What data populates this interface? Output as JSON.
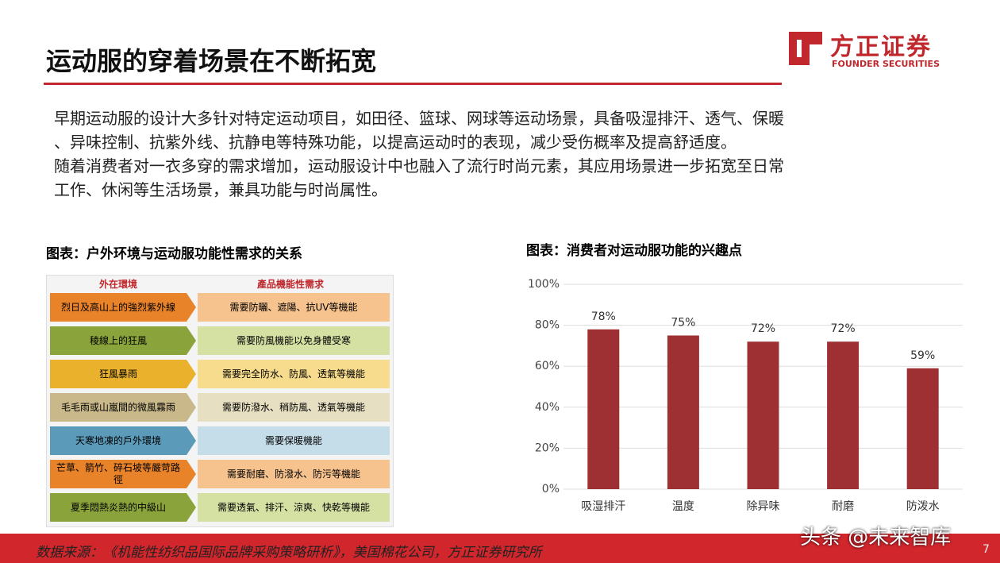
{
  "header": {
    "title": "运动服的穿着场景在不断拓宽",
    "logo_cn": "方正证券",
    "logo_en": "FOUNDER SECURITIES"
  },
  "body": {
    "lines": [
      "早期运动服的设计大多针对特定运动项目，如田径、篮球、网球等运动场景，具备吸湿排汗、透气、保暖",
      "、异味控制、抗紫外线、抗静电等特殊功能，以提高运动时的表现，减少受伤概率及提高舒适度。",
      "随着消费者对一衣多穿的需求增加，运动服设计中也融入了流行时尚元素，其应用场景进一步拓宽至日常",
      "工作、休闲等生活场景，兼具功能与时尚属性。"
    ]
  },
  "left_figure": {
    "title": "图表：户外环境与运动服功能性需求的关系",
    "table": {
      "header": [
        "外在環境",
        "產品機能性需求"
      ],
      "rows": [
        [
          "烈日及高山上的強烈紫外線",
          "需要防曬、遮陽、抗UV等機能"
        ],
        [
          "稜線上的狂風",
          "需要防風機能以免身體受寒"
        ],
        [
          "狂風暴雨",
          "需要完全防水、防風、透氣等機能"
        ],
        [
          "毛毛雨或山嵐間的微風霧雨",
          "需要防潑水、稍防風、透氣等機能"
        ],
        [
          "天寒地凍的戶外環境",
          "需要保暖機能"
        ],
        [
          "芒草、箭竹、碎石坡等嚴苛路徑",
          "需要耐磨、防潑水、防污等機能"
        ],
        [
          "夏季悶熱炎熱的中級山",
          "需要透氣、排汗、涼爽、快乾等機能"
        ]
      ]
    }
  },
  "chart_data": {
    "type": "bar",
    "title": "图表：消费者对运动服功能的兴趣点",
    "categories": [
      "吸湿排汗",
      "温度",
      "除异味",
      "耐磨",
      "防泼水"
    ],
    "values": [
      78,
      75,
      72,
      72,
      59
    ],
    "value_labels": [
      "78%",
      "75%",
      "72%",
      "72%",
      "59%"
    ],
    "color": "#9e3033",
    "ylim": [
      0,
      100
    ],
    "yticks": [
      {
        "value": 0,
        "label": "0%"
      },
      {
        "value": 20,
        "label": "20%"
      },
      {
        "value": 40,
        "label": "40%"
      },
      {
        "value": 60,
        "label": "60%"
      },
      {
        "value": 80,
        "label": "80%"
      },
      {
        "value": 100,
        "label": "100%"
      }
    ],
    "grid": true
  },
  "footer": {
    "source": "数据来源：《机能性纺织品国际品牌采购策略研析》，美国棉花公司，方正证券研究所",
    "watermark": "头条 @未来智库",
    "page": "7"
  }
}
